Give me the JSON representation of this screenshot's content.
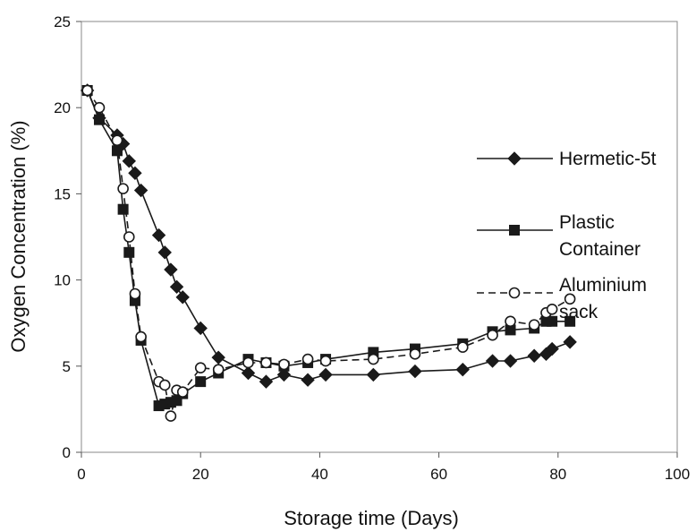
{
  "chart_data": {
    "type": "line",
    "title": "",
    "xlabel": "Storage time (Days)",
    "ylabel": "Oxygen Concentration (%)",
    "xlim": [
      0,
      100
    ],
    "ylim": [
      0,
      25
    ],
    "xticks": [
      0,
      20,
      40,
      60,
      80,
      100
    ],
    "yticks": [
      0,
      5,
      10,
      15,
      20,
      25
    ],
    "grid": false,
    "legend_position": "right",
    "series": [
      {
        "name": "Hermetic-5t",
        "legend_lines": [
          "Hermetic-5t"
        ],
        "marker": "diamond",
        "line": "solid",
        "color": "#1a1a1a",
        "x": [
          1,
          3,
          6,
          7,
          8,
          9,
          10,
          13,
          14,
          15,
          16,
          17,
          20,
          23,
          28,
          31,
          34,
          38,
          41,
          49,
          56,
          64,
          69,
          72,
          76,
          78,
          79,
          82
        ],
        "y": [
          21.0,
          19.4,
          18.4,
          17.9,
          16.9,
          16.2,
          15.2,
          12.6,
          11.6,
          10.6,
          9.6,
          9.0,
          7.2,
          5.5,
          4.6,
          4.1,
          4.5,
          4.2,
          4.5,
          4.5,
          4.7,
          4.8,
          5.3,
          5.3,
          5.6,
          5.7,
          6.0,
          6.4
        ]
      },
      {
        "name": "Plastic Container",
        "legend_lines": [
          "Plastic",
          "Container"
        ],
        "marker": "square",
        "line": "solid",
        "color": "#1a1a1a",
        "x": [
          1,
          3,
          6,
          7,
          8,
          9,
          10,
          13,
          14,
          15,
          16,
          17,
          20,
          23,
          28,
          31,
          34,
          38,
          41,
          49,
          56,
          64,
          69,
          72,
          76,
          78,
          79,
          82
        ],
        "y": [
          21.0,
          19.3,
          17.5,
          14.1,
          11.6,
          8.8,
          6.5,
          2.7,
          2.8,
          2.9,
          3.0,
          3.4,
          4.1,
          4.6,
          5.4,
          5.2,
          5.0,
          5.2,
          5.4,
          5.8,
          6.0,
          6.3,
          7.0,
          7.1,
          7.2,
          7.6,
          7.6,
          7.6
        ]
      },
      {
        "name": "Aluminium sack",
        "legend_lines": [
          "Aluminium",
          "sack"
        ],
        "marker": "circle-open",
        "line": "dashed",
        "color": "#1a1a1a",
        "x": [
          1,
          3,
          6,
          7,
          8,
          9,
          10,
          13,
          14,
          15,
          16,
          17,
          20,
          23,
          28,
          31,
          34,
          38,
          41,
          49,
          56,
          64,
          69,
          72,
          76,
          78,
          79,
          82
        ],
        "y": [
          21.0,
          20.0,
          18.1,
          15.3,
          12.5,
          9.2,
          6.7,
          4.1,
          3.9,
          2.1,
          3.6,
          3.5,
          4.9,
          4.8,
          5.2,
          5.2,
          5.1,
          5.4,
          5.3,
          5.4,
          5.7,
          6.1,
          6.8,
          7.6,
          7.4,
          8.1,
          8.3,
          8.9
        ]
      }
    ]
  }
}
